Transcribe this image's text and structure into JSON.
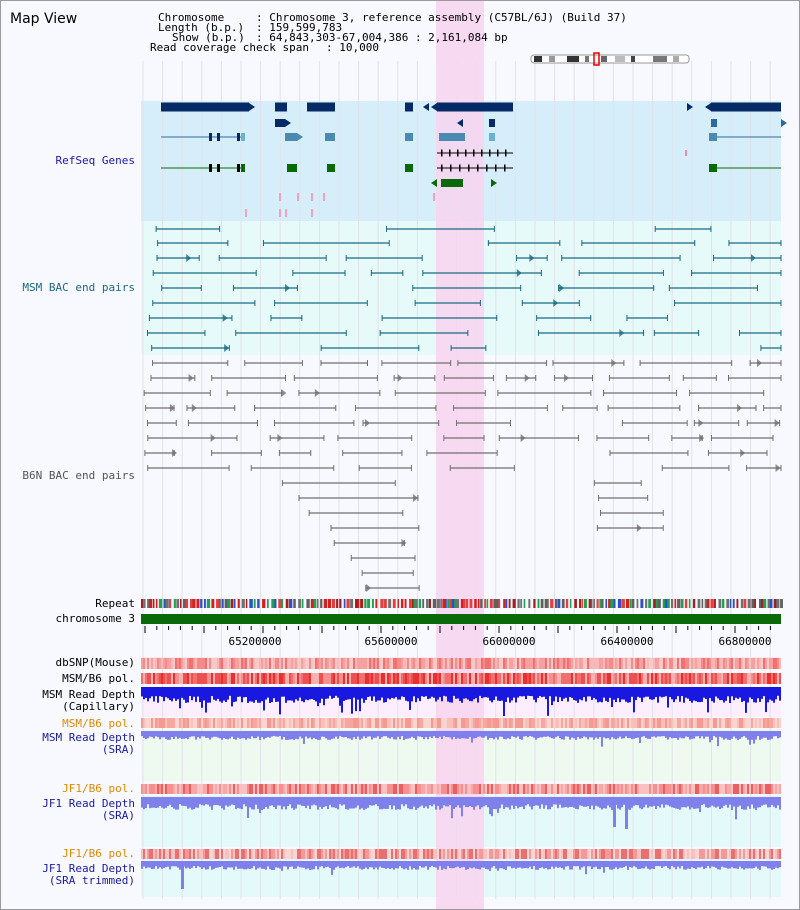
{
  "title": "Map View",
  "header": {
    "chromosome_key": "Chromosome",
    "chromosome_val": ": Chromosome 3, reference assembly (C57BL/6J) (Build 37)",
    "length_key": "Length (b.p.)",
    "length_val": ": 159,599,783",
    "show_key": "Show (b.p.)",
    "show_val": ": 64,843,303-67,004,386 : 2,161,084 bp",
    "span_key": "Read coverage check span",
    "span_val": ": 10,000"
  },
  "tracks": {
    "refseq": "RefSeq Genes",
    "msm_bac": "MSM BAC end pairs",
    "b6n_bac": "B6N BAC end pairs",
    "repeat": "Repeat",
    "chromosome": "chromosome 3",
    "dbsnp": "dbSNP(Mouse)",
    "msm_b6_pol_1": "MSM/B6 pol.",
    "msm_depth_cap_1": "MSM Read Depth",
    "msm_depth_cap_2": "(Capillary)",
    "msm_b6_pol_2": "MSM/B6 pol.",
    "msm_depth_sra_1": "MSM Read Depth",
    "msm_depth_sra_2": "(SRA)",
    "jf1_b6_pol_1": "JF1/B6 pol.",
    "jf1_depth_sra_1": "JF1 Read Depth",
    "jf1_depth_sra_2": "(SRA)",
    "jf1_b6_pol_2": "JF1/B6 pol.",
    "jf1_depth_trim_1": "JF1 Read Depth",
    "jf1_depth_trim_2": "(SRA trimmed)"
  },
  "axis": {
    "ticks": [
      "65200000",
      "65600000",
      "66000000",
      "66400000",
      "66800000"
    ]
  },
  "colors": {
    "refseq_band": "#d6eefa",
    "bac_band": "#e6fafa",
    "highlight": "#f8d4f0",
    "gene_dark": "#062a66",
    "msm_line": "#1a6a80",
    "b6n_line": "#707070",
    "depth_blue": "#1818e0",
    "depth_light": "#8080ec",
    "chromosome_green": "#0a6a0a"
  }
}
